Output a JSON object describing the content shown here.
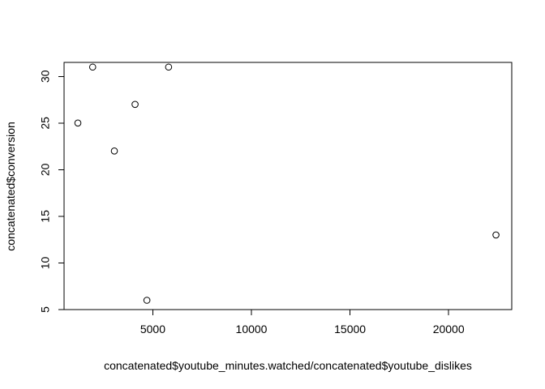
{
  "chart_data": {
    "type": "scatter",
    "title": "",
    "xlabel": "concatenated$youtube_minutes.watched/concatenated$youtube_dislikes",
    "ylabel": "concatenated$conversion",
    "xlim": [
      500,
      23200
    ],
    "ylim": [
      5,
      31.5
    ],
    "xticks": [
      5000,
      10000,
      15000,
      20000
    ],
    "yticks": [
      5,
      10,
      15,
      20,
      25,
      30
    ],
    "grid": false,
    "marker": "open-circle",
    "colors": {
      "points": "#000000",
      "axes": "#000000",
      "background": "#ffffff"
    },
    "points": [
      {
        "x": 1200,
        "y": 25
      },
      {
        "x": 1950,
        "y": 31
      },
      {
        "x": 3050,
        "y": 22
      },
      {
        "x": 4100,
        "y": 27
      },
      {
        "x": 4700,
        "y": 6
      },
      {
        "x": 5800,
        "y": 31
      },
      {
        "x": 22400,
        "y": 13
      }
    ]
  }
}
